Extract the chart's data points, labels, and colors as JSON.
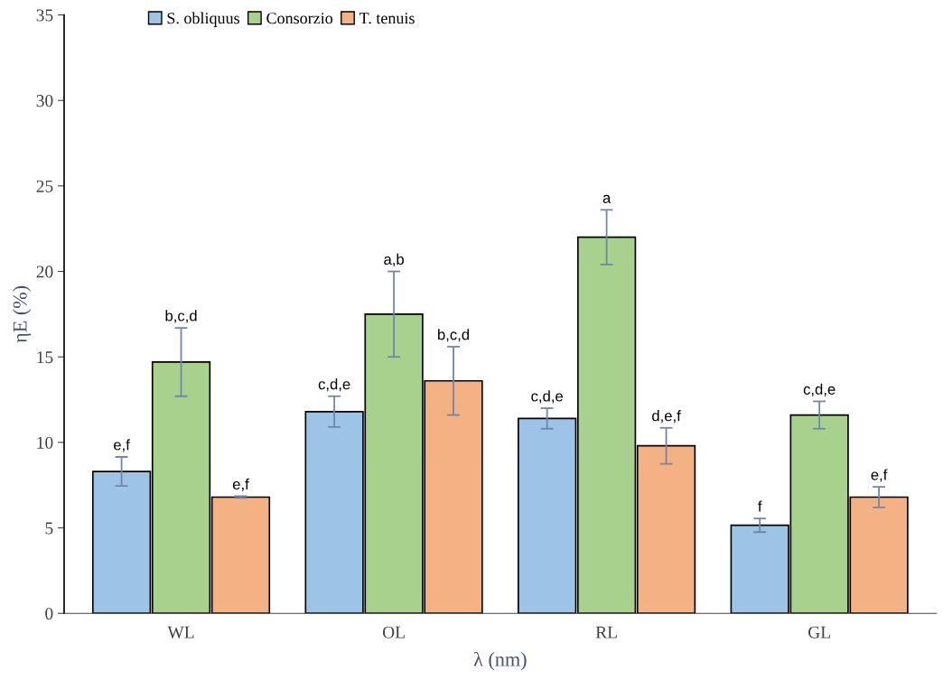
{
  "chart_data": {
    "type": "bar",
    "xlabel": "λ (nm)",
    "ylabel": "ηE (%)",
    "categories": [
      "WL",
      "OL",
      "RL",
      "GL"
    ],
    "series": [
      {
        "name": "S. obliquus",
        "color": "#9dc3e6",
        "values": [
          8.3,
          11.8,
          11.4,
          5.15
        ],
        "errors": [
          0.85,
          0.9,
          0.6,
          0.4
        ],
        "value_labels": [
          "e,f",
          "c,d,e",
          "c,d,e",
          "f"
        ]
      },
      {
        "name": "Consorzio",
        "color": "#a9d18e",
        "values": [
          14.7,
          17.5,
          22.0,
          11.6
        ],
        "errors": [
          2.0,
          2.5,
          1.6,
          0.8
        ],
        "value_labels": [
          "b,c,d",
          "a,b",
          "a",
          "c,d,e"
        ]
      },
      {
        "name": "T. tenuis",
        "color": "#f4b183",
        "values": [
          6.8,
          13.6,
          9.8,
          6.8
        ],
        "errors": [
          0.05,
          2.0,
          1.05,
          0.6
        ],
        "value_labels": [
          "e,f",
          "b,c,d",
          "d,e,f",
          "e,f"
        ]
      }
    ],
    "ylim": [
      0,
      35
    ],
    "yticks": [
      0,
      5,
      10,
      15,
      20,
      25,
      30,
      35
    ],
    "grid": false,
    "legend": "top left"
  }
}
